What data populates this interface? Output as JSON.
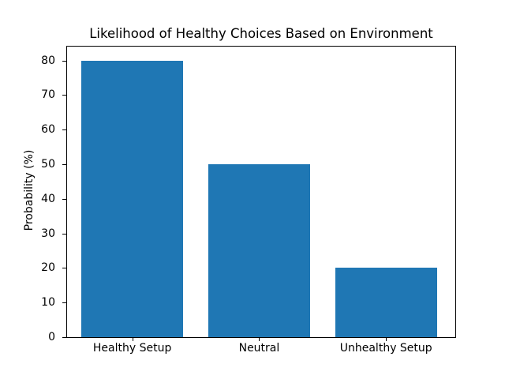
{
  "chart_data": {
    "type": "bar",
    "title": "Likelihood of Healthy Choices Based on Environment",
    "categories": [
      "Healthy Setup",
      "Neutral",
      "Unhealthy Setup"
    ],
    "values": [
      80,
      50,
      20
    ],
    "xlabel": "",
    "ylabel": "Probability (%)",
    "yticks": [
      0,
      10,
      20,
      30,
      40,
      50,
      60,
      70,
      80
    ],
    "ylim": [
      0,
      84
    ],
    "bar_color": "#1f77b4",
    "axis_color": "#000000",
    "background_color": "#ffffff",
    "grid": false,
    "legend": "none"
  }
}
